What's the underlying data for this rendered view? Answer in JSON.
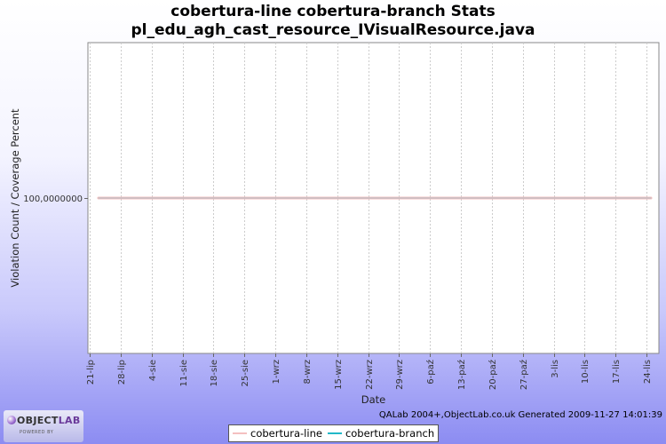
{
  "header": {
    "title_line1": "cobertura-line cobertura-branch  Stats",
    "title_line2": "pl_edu_agh_cast_resource_IVisualResource.java"
  },
  "footer": {
    "generated_text": "QALab 2004+,ObjectLab.co.uk Generated 2009-11-27 14:01:39",
    "logo_text_main": "OBJECT",
    "logo_text_lab": "LAB",
    "logo_subtext": "POWERED BY"
  },
  "chart_data": {
    "type": "line",
    "title": "cobertura-line cobertura-branch  Stats",
    "subtitle": "pl_edu_agh_cast_resource_IVisualResource.java",
    "xlabel": "Date",
    "ylabel": "Violation Count / Coverage Percent",
    "x_ticks": [
      "21-lip",
      "28-lip",
      "4-sie",
      "11-sie",
      "18-sie",
      "25-sie",
      "1-wrz",
      "8-wrz",
      "15-wrz",
      "22-wrz",
      "29-wrz",
      "6-paź",
      "13-paź",
      "20-paź",
      "27-paź",
      "3-lis",
      "10-lis",
      "17-lis",
      "24-lis"
    ],
    "y_ticks": [
      "100,0000000"
    ],
    "x_range_days": [
      -0.4,
      128.8
    ],
    "x_start": "21-lip",
    "y_range": [
      99.9,
      100.1
    ],
    "grid": "vertical dashed",
    "legend_position": "bottom",
    "series": [
      {
        "name": "cobertura-line",
        "color": "#f4c0c0",
        "x_days": [
          2,
          127
        ],
        "values": [
          100,
          100
        ]
      },
      {
        "name": "cobertura-branch",
        "color": "#22b8c8",
        "x_days": [
          2,
          127
        ],
        "values": [
          100,
          100
        ]
      }
    ]
  }
}
